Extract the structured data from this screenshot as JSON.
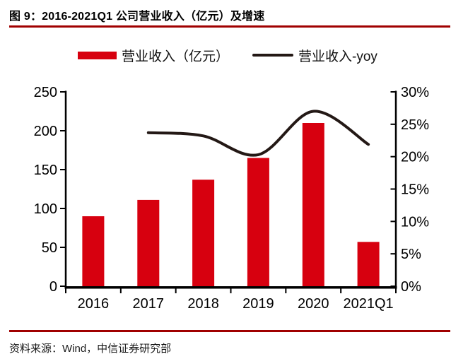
{
  "header": {
    "title": "图 9：2016-2021Q1 公司营业收入（亿元）及增速"
  },
  "legend": {
    "bar_label": "营业收入（亿元）",
    "line_label": "营业收入-yoy"
  },
  "footer": {
    "source": "资料来源：Wind，中信证券研究部"
  },
  "colors": {
    "bar": "#d7000f",
    "line": "#231815",
    "rule": "#a00000",
    "axis": "#000000",
    "text": "#111111"
  },
  "chart_data": {
    "type": "bar",
    "subtype": "bar+line-combo",
    "title": "图 9：2016-2021Q1 公司营业收入（亿元）及增速",
    "categories": [
      "2016",
      "2017",
      "2018",
      "2019",
      "2020",
      "2021Q1"
    ],
    "series": [
      {
        "name": "营业收入（亿元）",
        "type": "bar",
        "axis": "left",
        "values": [
          90,
          111,
          137,
          165,
          210,
          57
        ]
      },
      {
        "name": "营业收入-yoy",
        "type": "line",
        "axis": "right",
        "values": [
          null,
          23.7,
          23.2,
          20.3,
          27.0,
          21.9
        ]
      }
    ],
    "left_axis": {
      "min": 0,
      "max": 250,
      "ticks": [
        "0",
        "50",
        "100",
        "150",
        "200",
        "250"
      ]
    },
    "right_axis": {
      "min": 0,
      "max": 30,
      "ticks": [
        "0%",
        "5%",
        "10%",
        "15%",
        "20%",
        "25%",
        "30%"
      ]
    },
    "grid": false,
    "legend_position": "top",
    "source": "资料来源：Wind，中信证券研究部"
  }
}
